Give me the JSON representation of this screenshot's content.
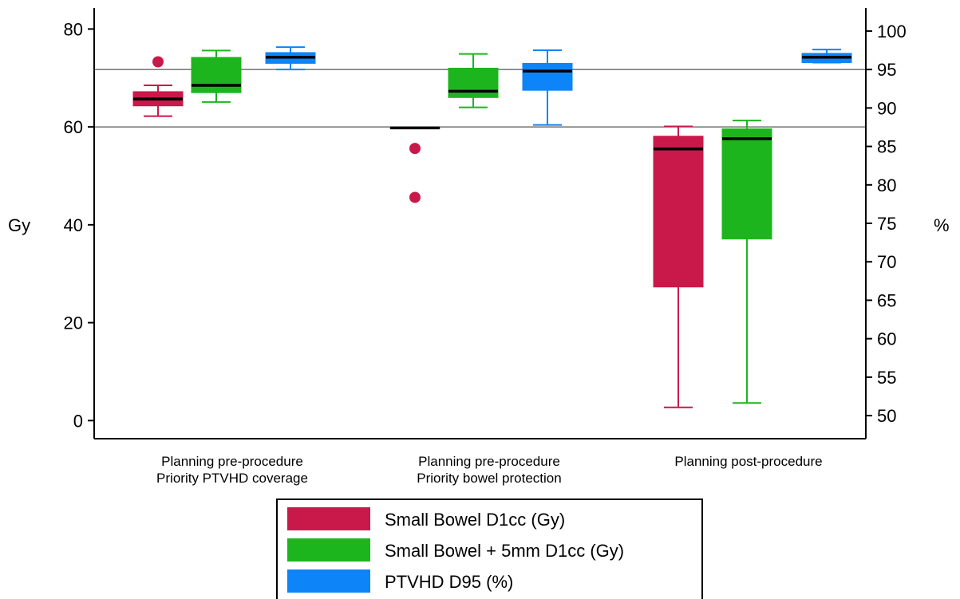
{
  "chart_data": {
    "type": "box",
    "ylabel_left": "Gy",
    "ylabel_right": "%",
    "ylim_left": [
      -3.7,
      84.3
    ],
    "ylim_right": [
      47,
      103
    ],
    "yticks_left": [
      "0",
      "20",
      "40",
      "60",
      "80"
    ],
    "yticks_right": [
      "50",
      "55",
      "60",
      "65",
      "70",
      "75",
      "80",
      "85",
      "90",
      "95",
      "100"
    ],
    "reference_lines": [
      {
        "axis": "left",
        "value": 60
      },
      {
        "axis": "right",
        "value": 95
      }
    ],
    "categories": [
      {
        "lines": [
          "Planning pre-procedure",
          "Priority PTVHD coverage"
        ]
      },
      {
        "lines": [
          "Planning pre-procedure",
          "Priority bowel protection"
        ]
      },
      {
        "lines": [
          "Planning post-procedure"
        ]
      }
    ],
    "series": [
      {
        "name": "Small Bowel  D1cc (Gy)",
        "axis": "left",
        "color": "#C8194A",
        "boxes": [
          {
            "min": 62.2,
            "q1": 64.3,
            "median": 65.7,
            "q3": 67.2,
            "max": 68.5,
            "outliers": [
              73.3
            ]
          },
          {
            "min": 59.8,
            "q1": 59.8,
            "median": 59.8,
            "q3": 59.8,
            "max": 59.8,
            "outliers": [
              55.6,
              45.6
            ]
          },
          {
            "min": 2.7,
            "q1": 27.3,
            "median": 55.5,
            "q3": 58.1,
            "max": 60.1,
            "outliers": []
          }
        ]
      },
      {
        "name": "Small Bowel + 5mm D1cc (Gy)",
        "axis": "left",
        "color": "#1DB51D",
        "boxes": [
          {
            "min": 65.1,
            "q1": 67.0,
            "median": 68.5,
            "q3": 74.2,
            "max": 75.6,
            "outliers": []
          },
          {
            "min": 64.0,
            "q1": 66.0,
            "median": 67.3,
            "q3": 72.0,
            "max": 74.9,
            "outliers": []
          },
          {
            "min": 3.6,
            "q1": 37.1,
            "median": 57.6,
            "q3": 59.6,
            "max": 61.3,
            "outliers": []
          }
        ]
      },
      {
        "name": "PTVHD  D95 (%)",
        "axis": "right",
        "color": "#0D84F7",
        "boxes": [
          {
            "min": 95.0,
            "q1": 95.8,
            "median": 96.6,
            "q3": 97.2,
            "max": 97.9,
            "outliers": []
          },
          {
            "min": 87.8,
            "q1": 92.3,
            "median": 94.8,
            "q3": 95.8,
            "max": 97.5,
            "outliers": []
          },
          {
            "min": null,
            "q1": 95.9,
            "median": 96.6,
            "q3": 97.1,
            "max": 97.6,
            "outliers": []
          }
        ]
      }
    ],
    "legend_position": "bottom-center"
  }
}
